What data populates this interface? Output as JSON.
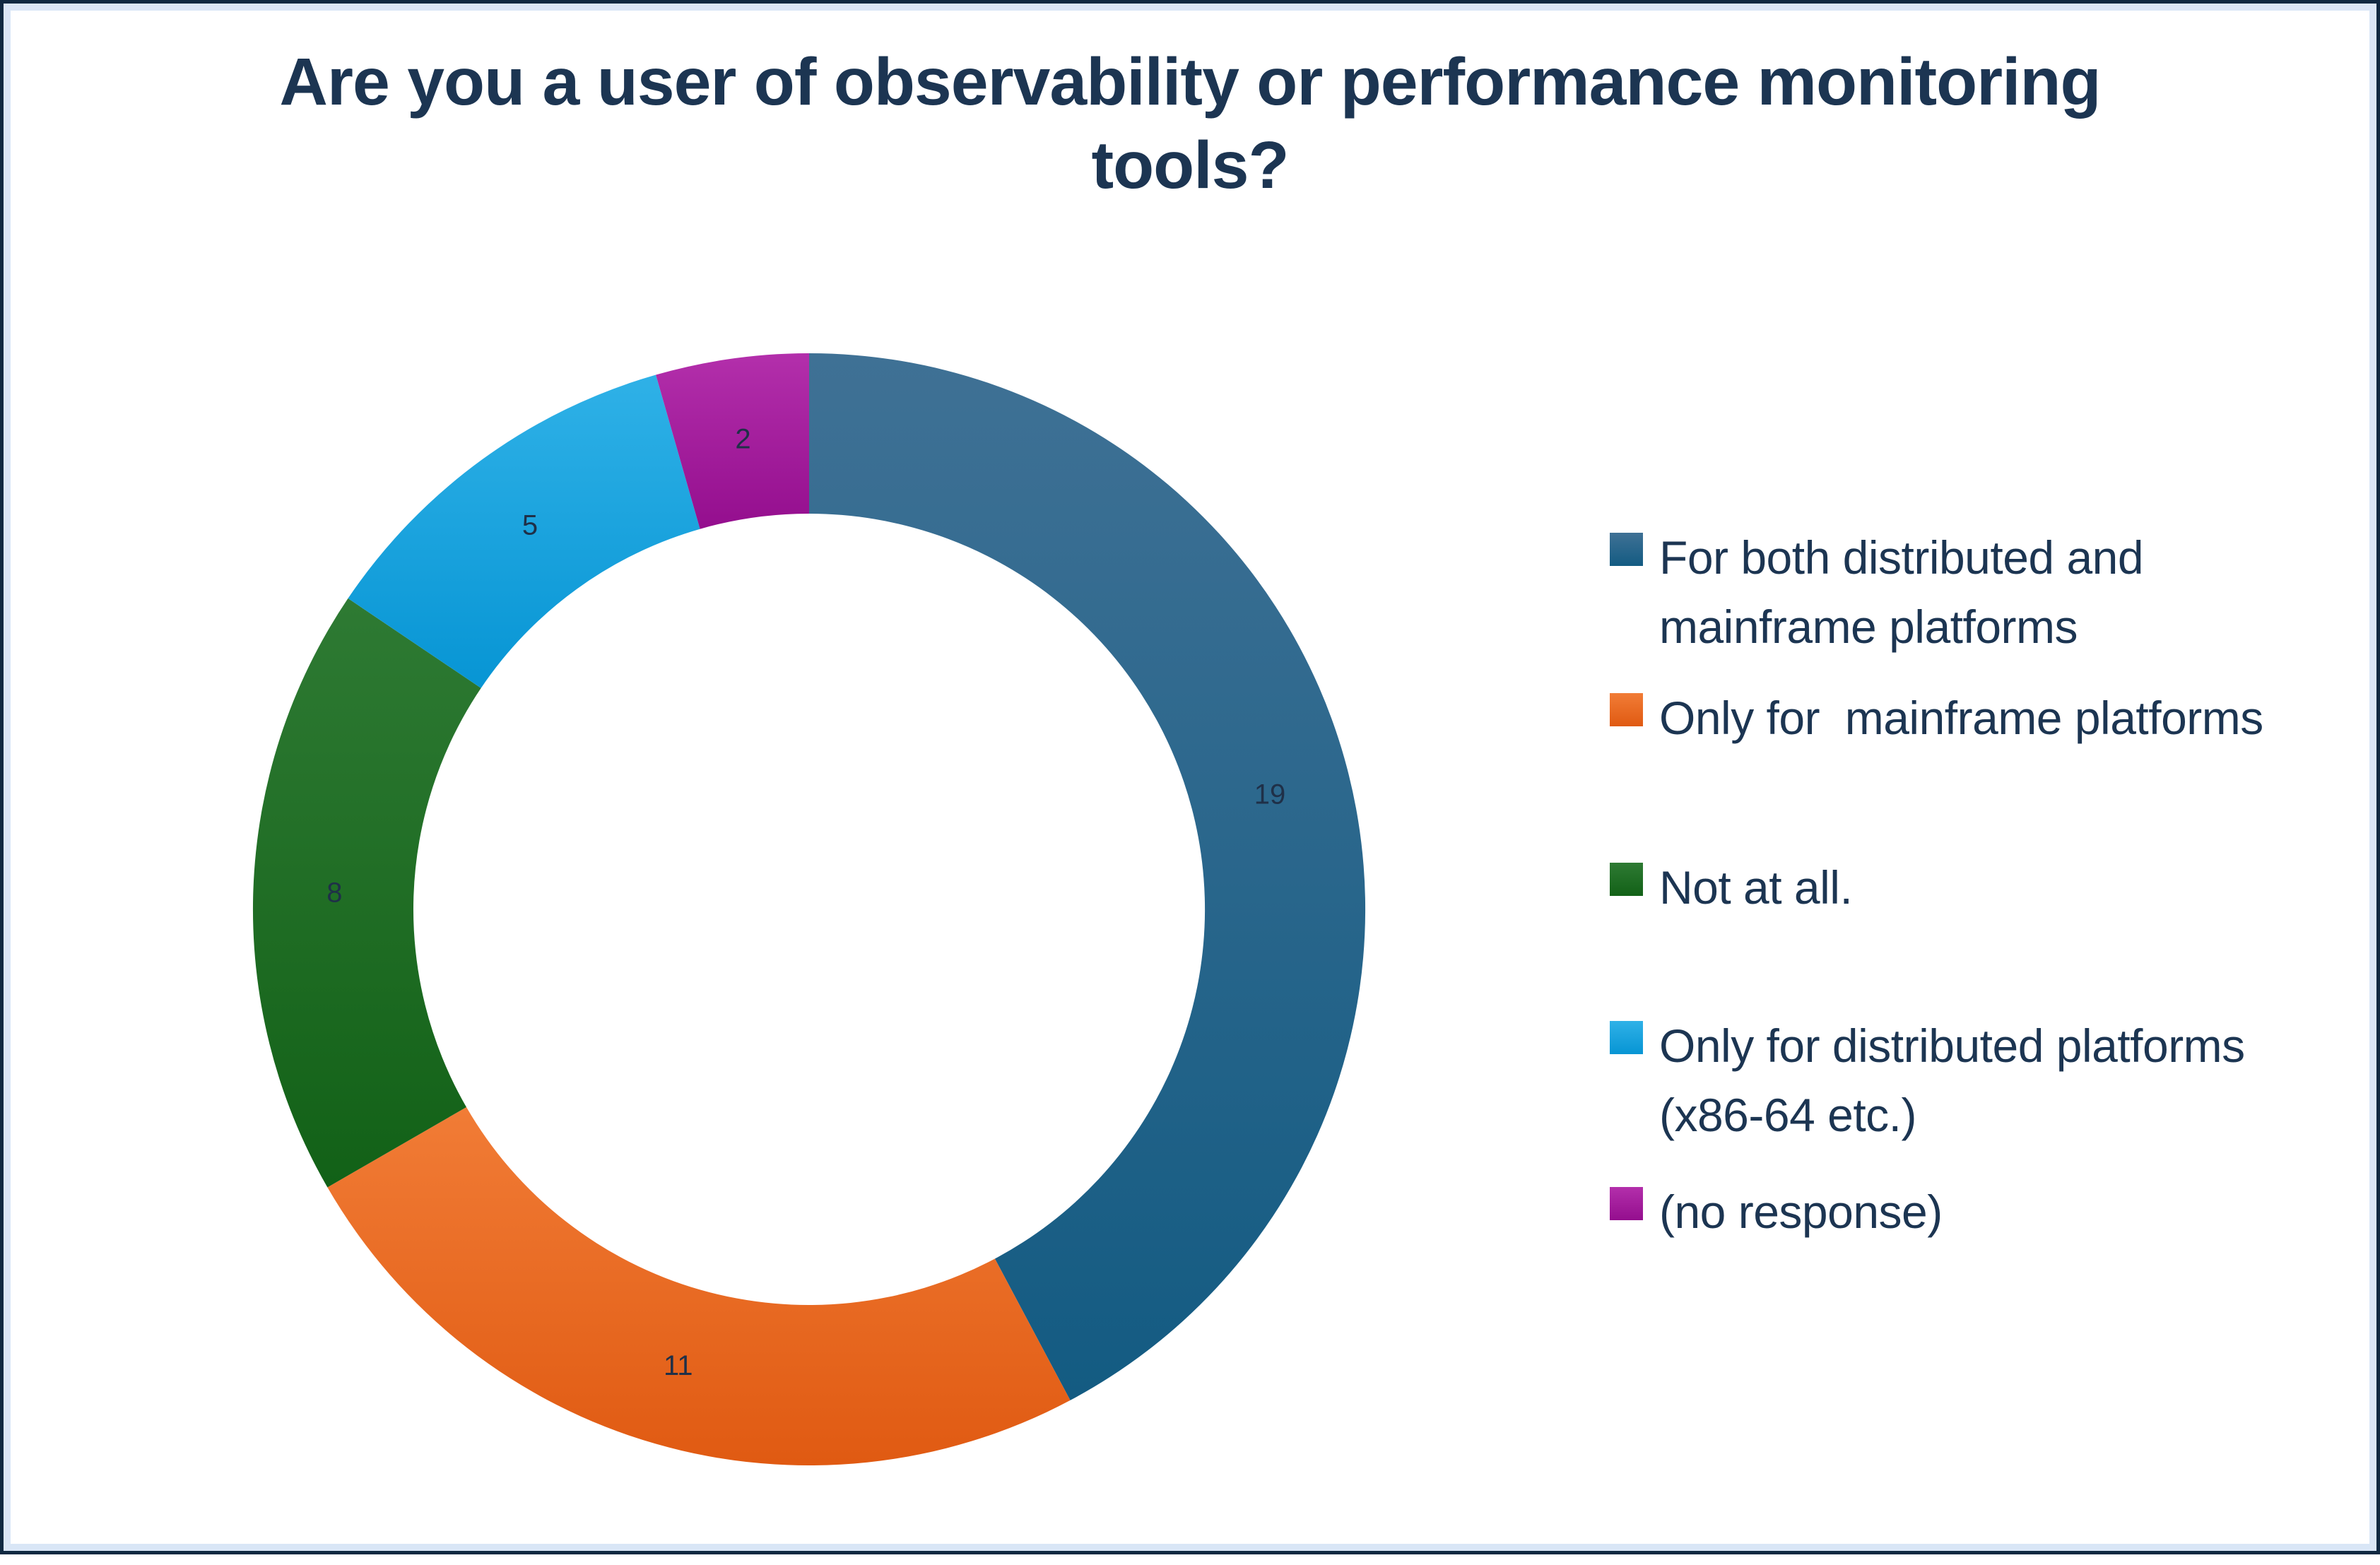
{
  "page": {
    "background": "#ffffff",
    "border_outer_color": "#0f2941",
    "border_inner_color": "#d9e6f6",
    "text_color": "#1c3552"
  },
  "chart_data": {
    "type": "donut",
    "title": "Are you a user of observability or performance monitoring\ntools?",
    "total": 45,
    "legend_position": "right",
    "start_angle_deg": 0,
    "direction": "clockwise",
    "slices": [
      {
        "label": "For both distributed and\nmainframe platforms",
        "value": 19,
        "color_light": "#3f7195",
        "color_dark": "#135b82"
      },
      {
        "label": "Only for  mainframe platforms",
        "value": 11,
        "color_light": "#f17c36",
        "color_dark": "#e05a12"
      },
      {
        "label": "Not at all.",
        "value": 8,
        "color_light": "#2e7a33",
        "color_dark": "#126117"
      },
      {
        "label": "Only for distributed platforms\n(x86-64 etc.)",
        "value": 5,
        "color_light": "#2fb1e7",
        "color_dark": "#0795d4"
      },
      {
        "label": "(no response)",
        "value": 2,
        "color_light": "#b32fab",
        "color_dark": "#940e8e"
      }
    ]
  }
}
